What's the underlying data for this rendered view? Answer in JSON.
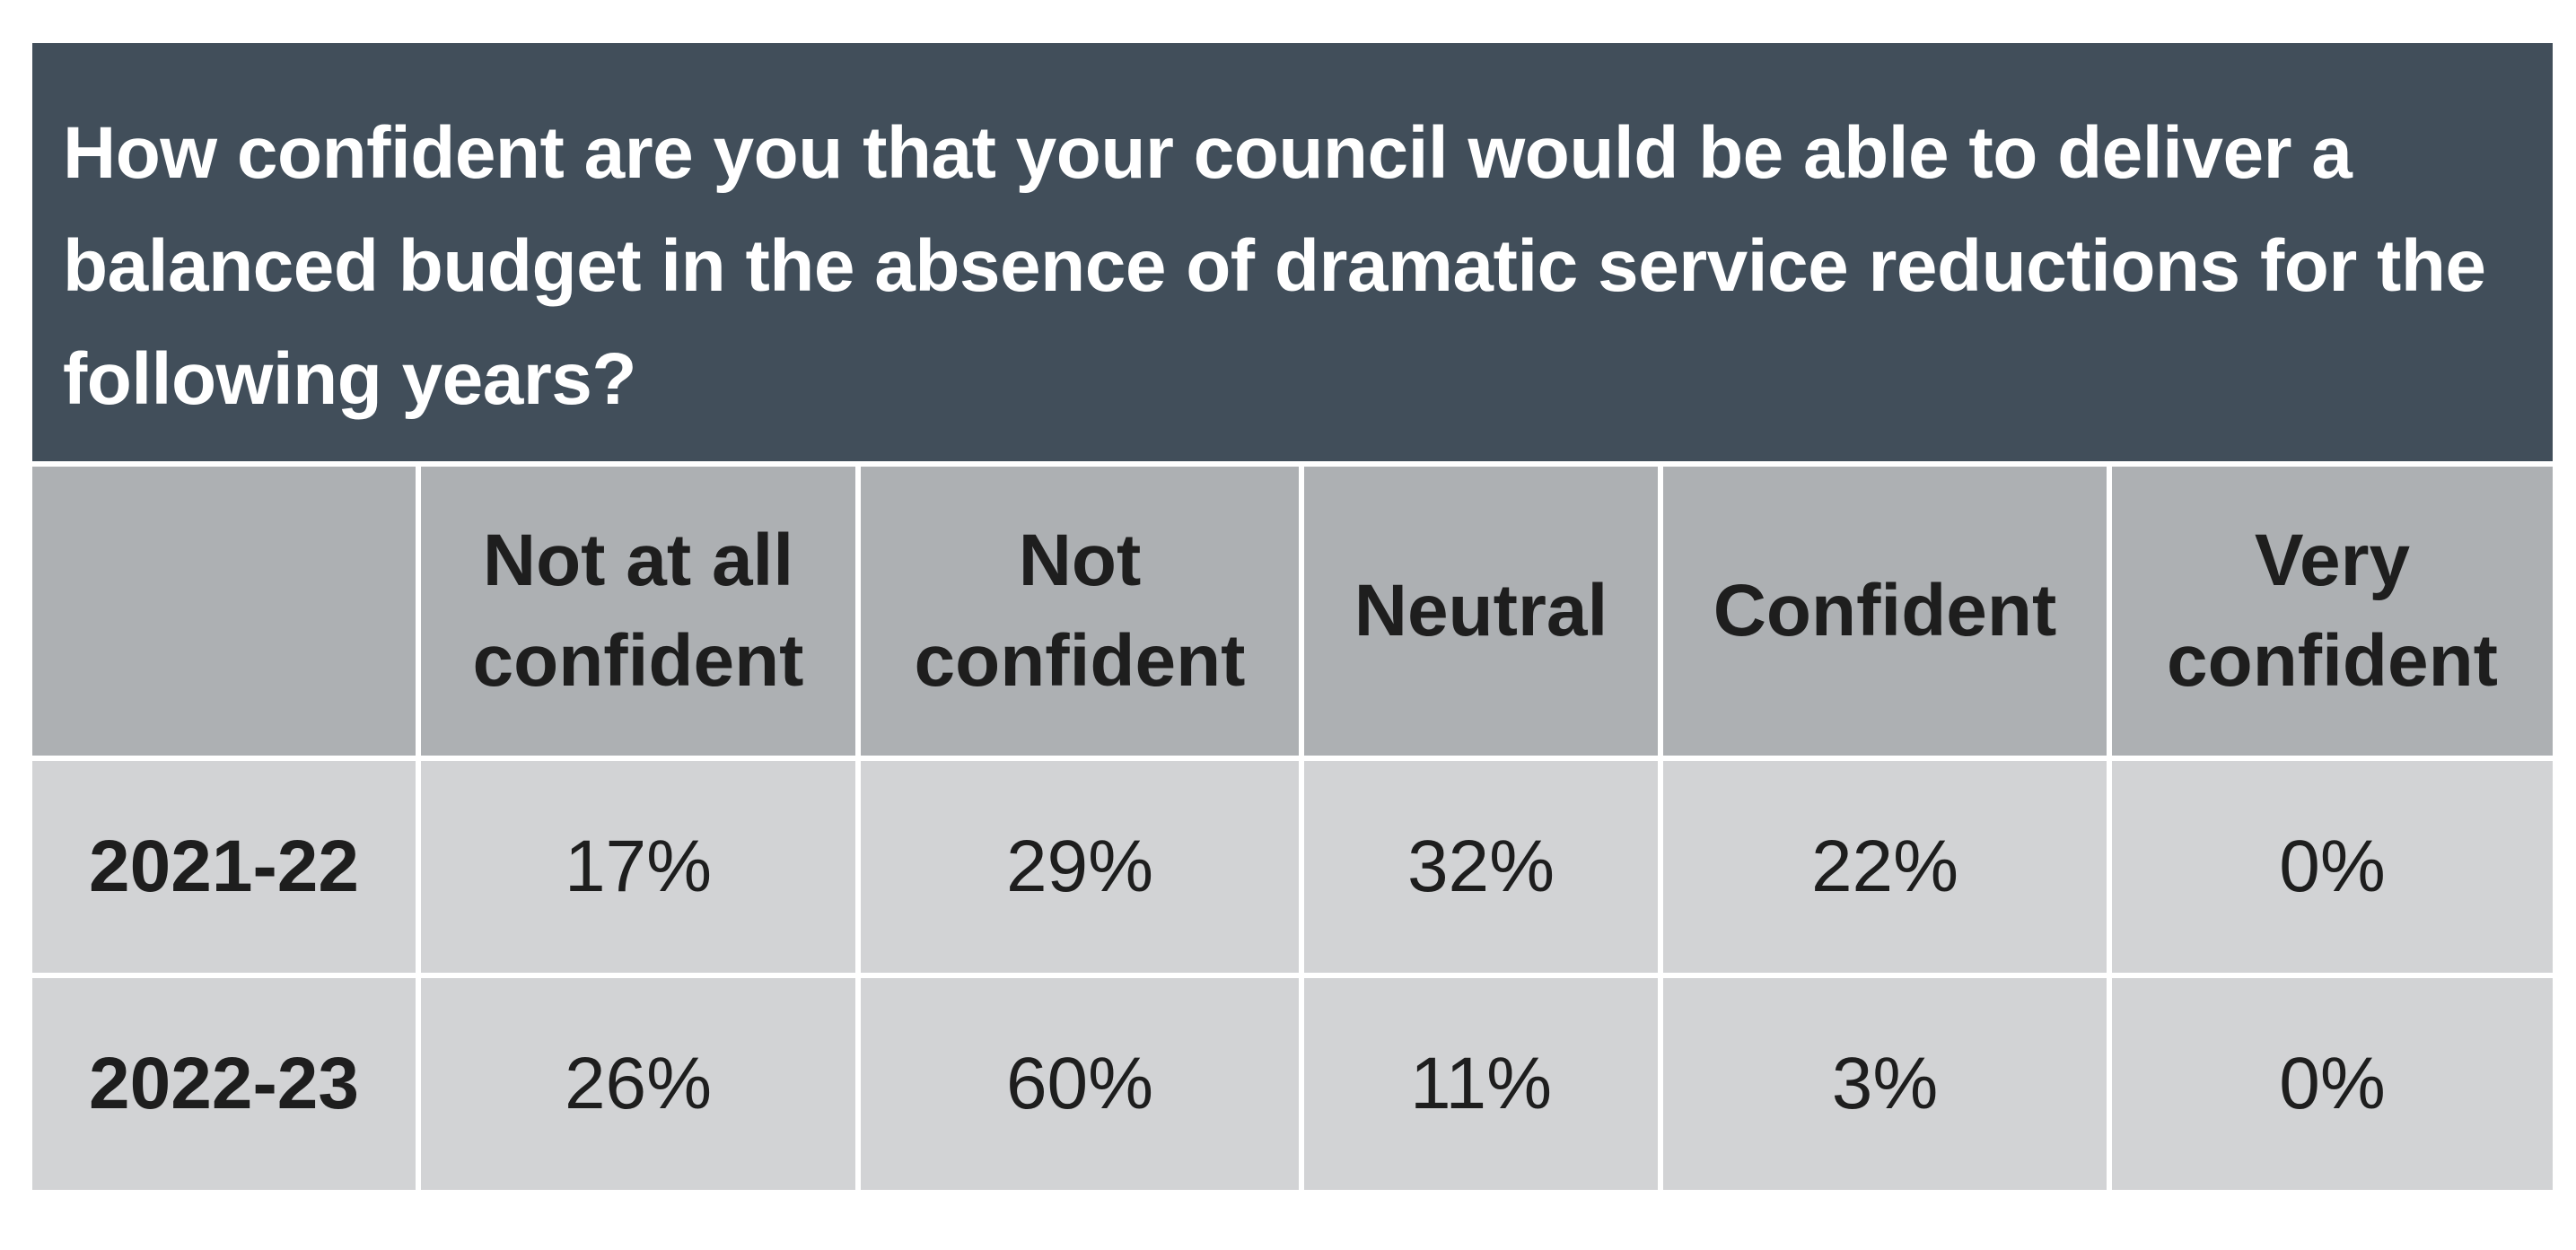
{
  "chart_data": {
    "type": "table",
    "title": "How confident are you that your council would be able to deliver a balanced budget in the absence of dramatic service reductions for the following years?",
    "columns": [
      "",
      "Not at all confident",
      "Not confident",
      "Neutral",
      "Confident",
      "Very confident"
    ],
    "rows": [
      {
        "label": "2021-22",
        "values": [
          "17%",
          "29%",
          "32%",
          "22%",
          "0%"
        ]
      },
      {
        "label": "2022-23",
        "values": [
          "26%",
          "60%",
          "11%",
          "3%",
          "0%"
        ]
      }
    ],
    "colors": {
      "title_background": "#414e5a",
      "header_background": "#adb0b3",
      "cell_background": "#d2d3d5"
    }
  }
}
